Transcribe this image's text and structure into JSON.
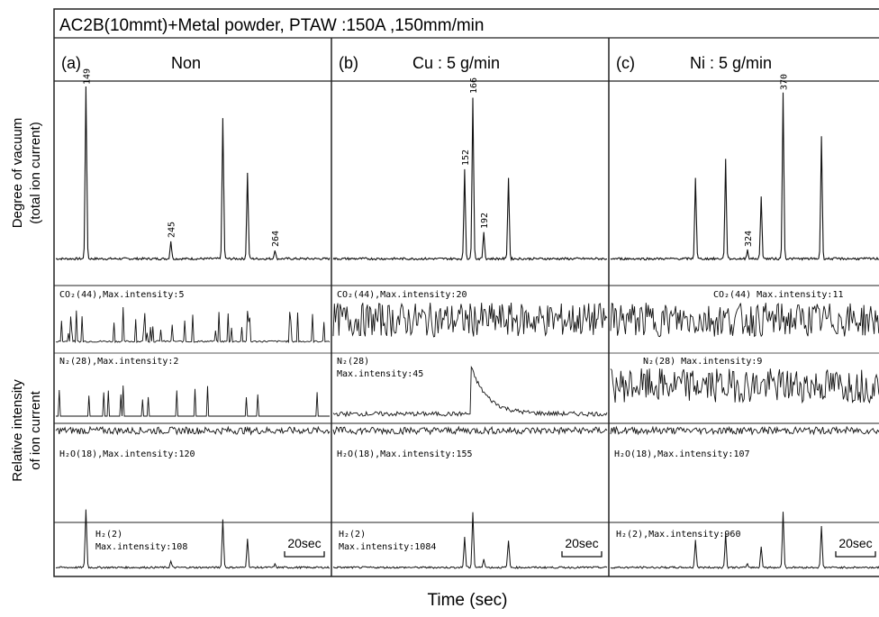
{
  "chart_data": {
    "type": "line",
    "title": "AC2B(10mmt)+Metal powder, PTAW :150A ,150mm/min",
    "xlabel": "Time (sec)",
    "ylabel_top": [
      "Degree of vacuum",
      "(total ion current)"
    ],
    "ylabel_bottom": [
      "Relative intensity",
      "of ion current"
    ],
    "scale_bar": "20sec",
    "panels": [
      {
        "id": "a",
        "label": "(a)",
        "title": "Non",
        "vacuum_peaks": [
          {
            "t": 0.11,
            "h": 0.95,
            "label": "149"
          },
          {
            "t": 0.42,
            "h": 0.1,
            "label": "245"
          },
          {
            "t": 0.61,
            "h": 0.78
          },
          {
            "t": 0.7,
            "h": 0.48
          },
          {
            "t": 0.8,
            "h": 0.05,
            "label": "264"
          }
        ],
        "traces": [
          {
            "label": "CO₂(44),Max.intensity:5"
          },
          {
            "label": "N₂(28),Max.intensity:2"
          },
          {
            "label": "H₂O(18),Max.intensity:120"
          },
          {
            "label": [
              "H₂(2)",
              "Max.intensity:108"
            ]
          }
        ]
      },
      {
        "id": "b",
        "label": "(b)",
        "title": "Cu : 5 g/min",
        "vacuum_peaks": [
          {
            "t": 0.51,
            "h": 0.9,
            "label": "166"
          },
          {
            "t": 0.48,
            "h": 0.5,
            "label": "152"
          },
          {
            "t": 0.55,
            "h": 0.15,
            "label": "192"
          },
          {
            "t": 0.64,
            "h": 0.45
          }
        ],
        "traces": [
          {
            "label": "CO₂(44),Max.intensity:20"
          },
          {
            "label": [
              "N₂(28)",
              "Max.intensity:45"
            ]
          },
          {
            "label": "H₂O(18),Max.intensity:155"
          },
          {
            "label": [
              "H₂(2)",
              "Max.intensity:1084"
            ]
          }
        ]
      },
      {
        "id": "c",
        "label": "(c)",
        "title": "Ni : 5 g/min",
        "vacuum_peaks": [
          {
            "t": 0.63,
            "h": 0.92,
            "label": "370"
          },
          {
            "t": 0.5,
            "h": 0.05,
            "label": "324"
          },
          {
            "t": 0.31,
            "h": 0.45
          },
          {
            "t": 0.42,
            "h": 0.55
          },
          {
            "t": 0.55,
            "h": 0.35
          },
          {
            "t": 0.77,
            "h": 0.68
          }
        ],
        "traces": [
          {
            "label": "CO₂(44) Max.intensity:11"
          },
          {
            "label": "N₂(28) Max.intensity:9"
          },
          {
            "label": "H₂O(18),Max.intensity:107"
          },
          {
            "label": "H₂(2),Max.intensity:960"
          }
        ]
      }
    ]
  }
}
